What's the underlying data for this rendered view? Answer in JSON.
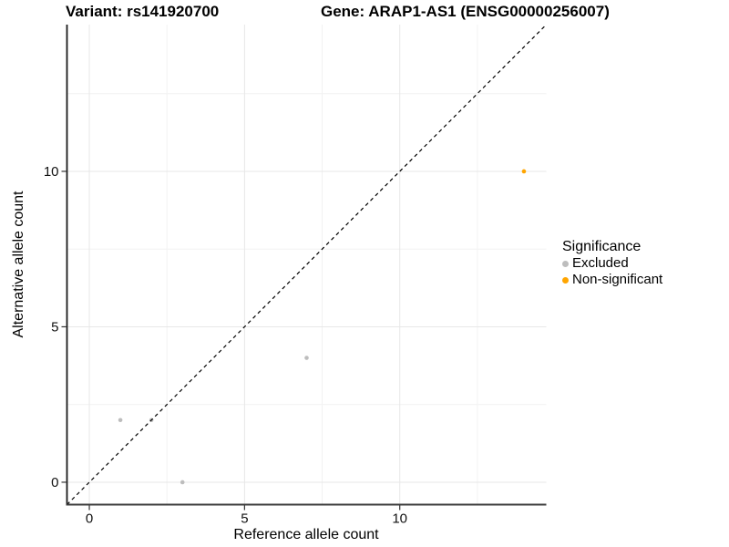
{
  "header": {
    "variant_title": "Variant: rs141920700",
    "gene_title": "Gene: ARAP1-AS1 (ENSG00000256007)"
  },
  "legend": {
    "title": "Significance",
    "items": [
      {
        "label": "Excluded",
        "color": "#BDBDBD"
      },
      {
        "label": "Non-significant",
        "color": "#FFA500"
      }
    ]
  },
  "chart_data": {
    "type": "scatter",
    "title": "",
    "xlabel": "Reference allele count",
    "ylabel": "Alternative allele count",
    "xlim": [
      -0.72,
      14.72
    ],
    "ylim": [
      -0.72,
      14.72
    ],
    "x_ticks": [
      0,
      5,
      10
    ],
    "y_ticks": [
      0,
      5,
      10
    ],
    "x_tick_labels": [
      "0",
      "5",
      "10"
    ],
    "y_tick_labels": [
      "0",
      "5",
      "10"
    ],
    "x_minor_ticks": [
      2.5,
      7.5,
      12.5
    ],
    "y_minor_ticks": [
      2.5,
      7.5,
      12.5
    ],
    "grid": true,
    "legend_position": "right",
    "identity_line": {
      "equation": "y = x",
      "style": "dashed",
      "color": "#000000"
    },
    "series": [
      {
        "name": "Excluded",
        "color": "#BDBDBD",
        "points": [
          [
            1,
            2
          ],
          [
            2,
            2
          ],
          [
            3,
            0
          ],
          [
            7,
            4
          ]
        ]
      },
      {
        "name": "Non-significant",
        "color": "#FFA500",
        "points": [
          [
            14,
            10
          ]
        ]
      }
    ]
  }
}
